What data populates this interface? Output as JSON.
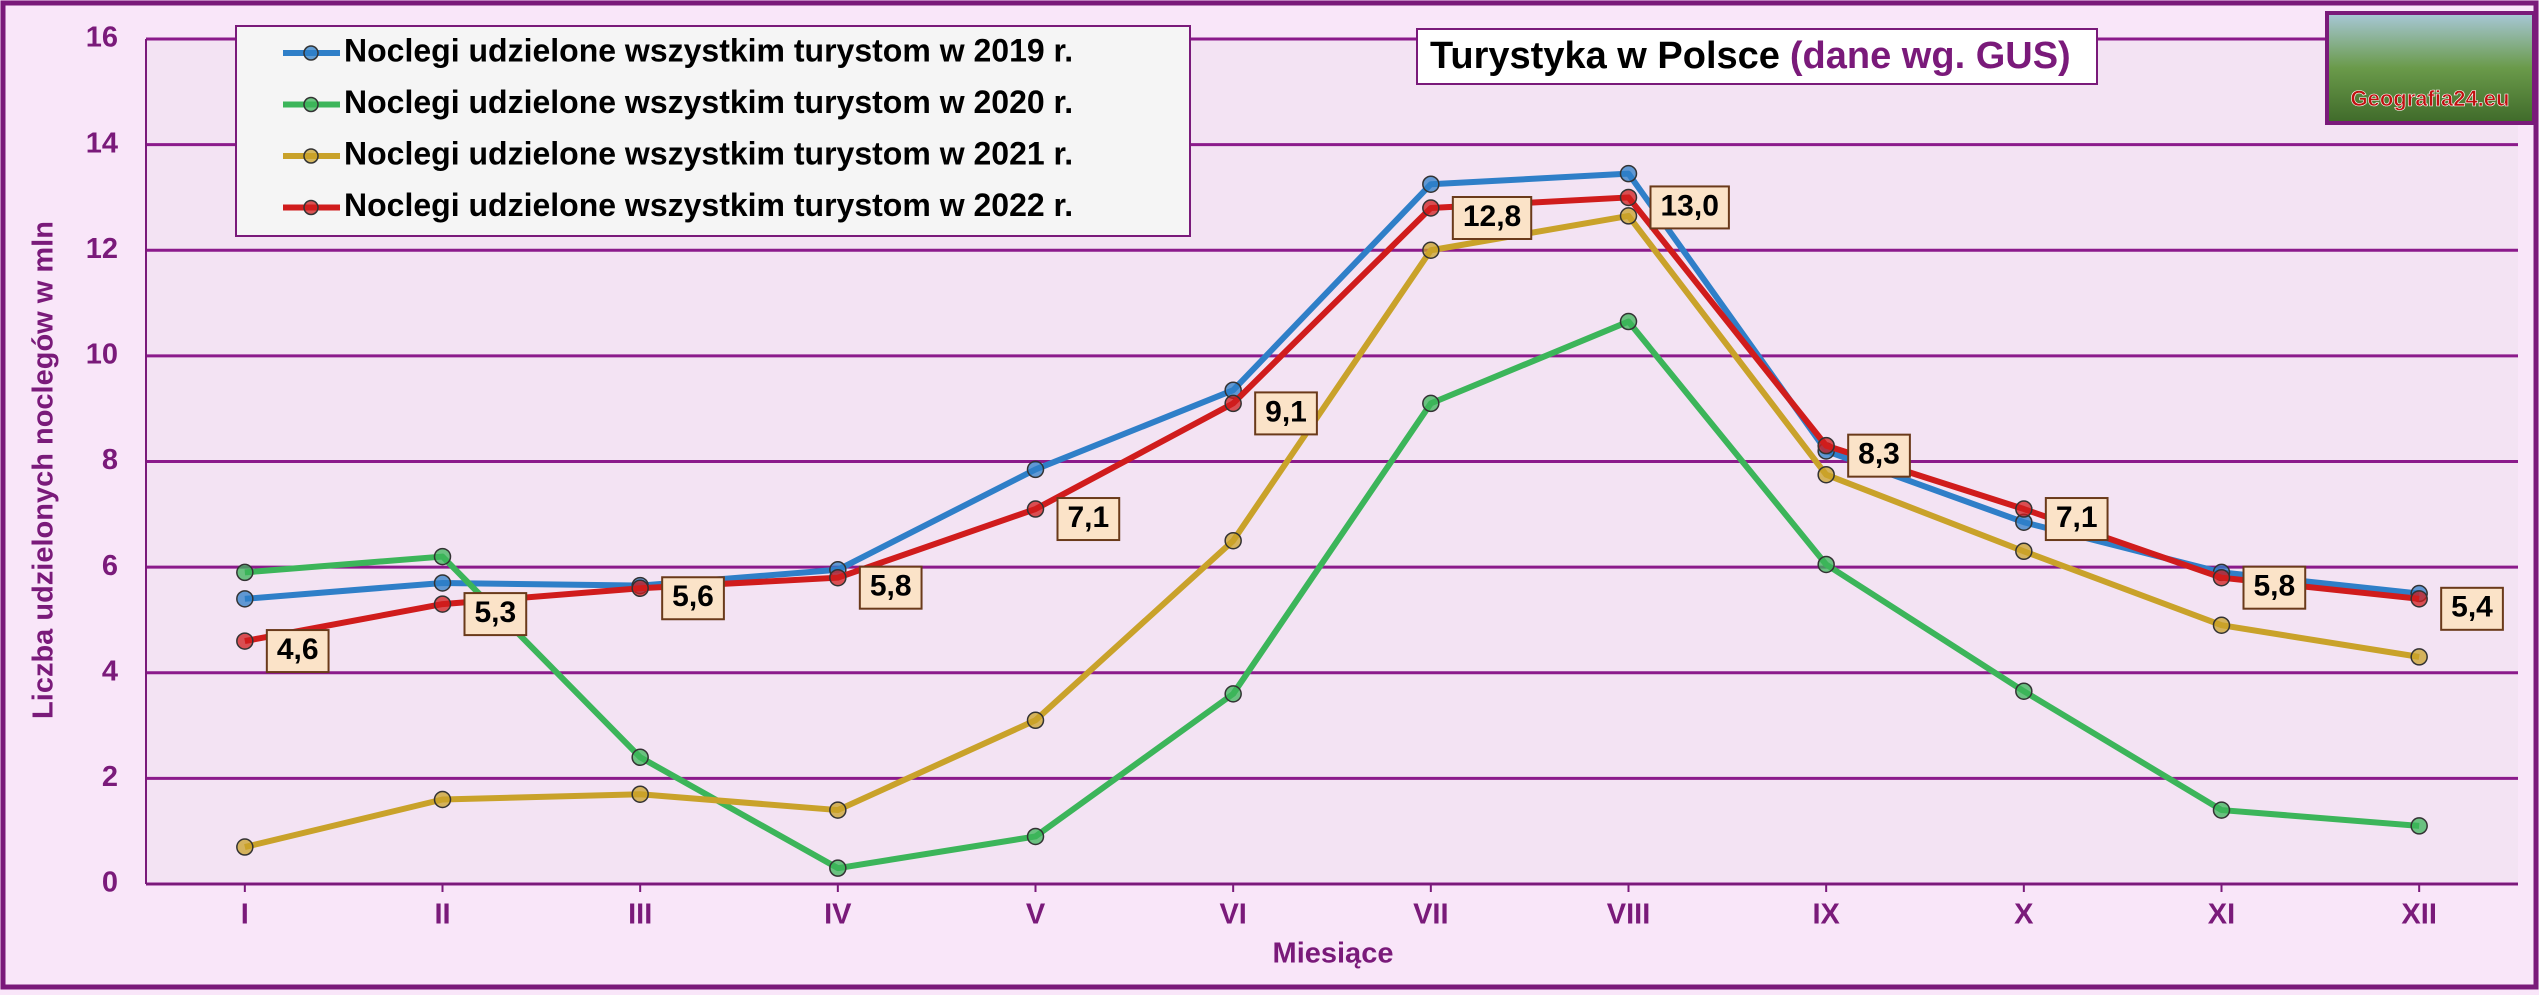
{
  "chart_data": {
    "type": "line",
    "title": "Turystyka w Polsce",
    "subtitle": "(dane wg. GUS)",
    "logo_text": "Geografia24.eu",
    "y_label": "Liczba udzielonych noclegów w mln",
    "x_label": "Miesiące",
    "categories": [
      "I",
      "II",
      "III",
      "IV",
      "V",
      "VI",
      "VII",
      "VIII",
      "IX",
      "X",
      "XI",
      "XII"
    ],
    "ylim": [
      0,
      16
    ],
    "yticks": [
      0,
      2,
      4,
      6,
      8,
      10,
      12,
      14,
      16
    ],
    "grid": true,
    "series": [
      {
        "name": "Noclegi udzielone wszystkim turystom w 2019 r.",
        "color": "#2f7fc8",
        "values": [
          5.4,
          5.7,
          5.65,
          5.95,
          7.85,
          9.35,
          13.25,
          13.45,
          8.2,
          6.85,
          5.9,
          5.5
        ]
      },
      {
        "name": "Noclegi udzielone wszystkim turystom w 2020 r.",
        "color": "#3cb55a",
        "values": [
          5.9,
          6.2,
          2.4,
          0.3,
          0.9,
          3.6,
          9.1,
          10.65,
          6.05,
          3.65,
          1.4,
          1.1
        ]
      },
      {
        "name": "Noclegi udzielone wszystkim turystom w 2021 r.",
        "color": "#c9a22a",
        "values": [
          0.7,
          1.6,
          1.7,
          1.4,
          3.1,
          6.5,
          12.0,
          12.65,
          7.75,
          6.3,
          4.9,
          4.3
        ]
      },
      {
        "name": "Noclegi udzielone wszystkim turystom w 2022 r.",
        "color": "#d01c1c",
        "values": [
          4.6,
          5.3,
          5.6,
          5.8,
          7.1,
          9.1,
          12.8,
          13.0,
          8.3,
          7.1,
          5.8,
          5.4
        ],
        "value_labels": [
          "4,6",
          "5,3",
          "5,6",
          "5,8",
          "7,1",
          "9,1",
          "12,8",
          "13,0",
          "8,3",
          "7,1",
          "5,8",
          "5,4"
        ]
      }
    ]
  }
}
